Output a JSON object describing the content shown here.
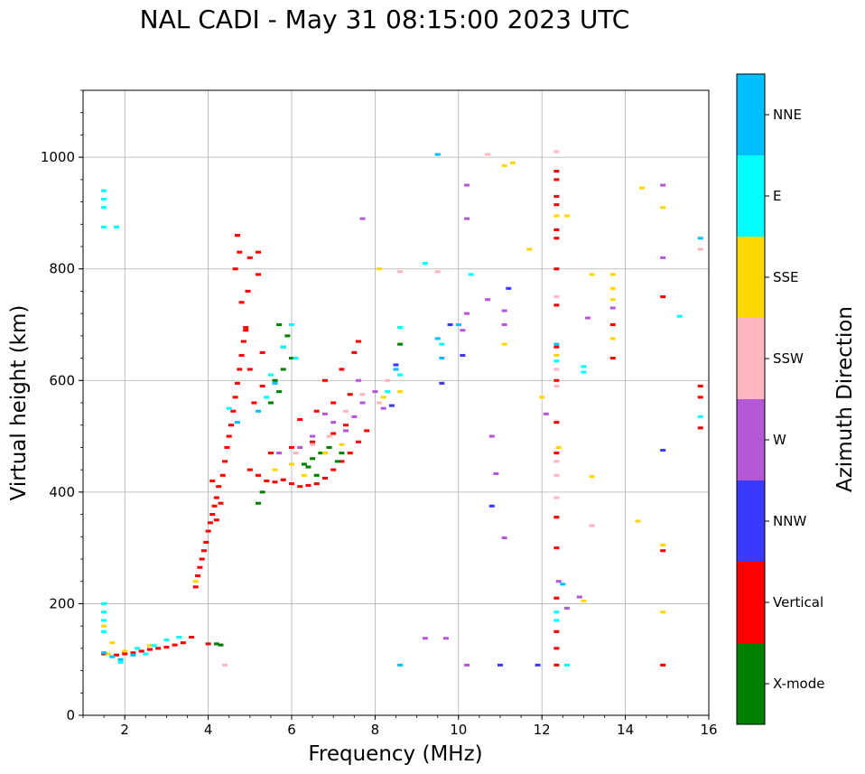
{
  "chart_data": {
    "type": "scatter",
    "title": "NAL CADI - May 31 08:15:00 2023 UTC",
    "xlabel": "Frequency (MHz)",
    "ylabel": "Virtual height (km)",
    "xlim": [
      1,
      16
    ],
    "ylim": [
      0,
      1120
    ],
    "xticks": [
      2,
      4,
      6,
      8,
      10,
      12,
      14,
      16
    ],
    "yticks": [
      0,
      200,
      400,
      600,
      800,
      1000
    ],
    "grid": true,
    "colorbar": {
      "label": "Azimuth Direction",
      "categories": [
        {
          "name": "X-mode",
          "color": "#008000"
        },
        {
          "name": "Vertical",
          "color": "#ff0000"
        },
        {
          "name": "NNW",
          "color": "#3a3aff"
        },
        {
          "name": "W",
          "color": "#b558d8"
        },
        {
          "name": "SSW",
          "color": "#ffb6c1"
        },
        {
          "name": "SSE",
          "color": "#ffd700"
        },
        {
          "name": "E",
          "color": "#00ffff"
        },
        {
          "name": "NNE",
          "color": "#00bfff"
        }
      ]
    },
    "cell_size": {
      "df": 0.13,
      "dh": 5
    },
    "series": [
      {
        "name": "Vertical",
        "points": [
          [
            1.5,
            110
          ],
          [
            1.8,
            108
          ],
          [
            2.0,
            110
          ],
          [
            2.2,
            112
          ],
          [
            2.4,
            115
          ],
          [
            2.6,
            118
          ],
          [
            2.8,
            120
          ],
          [
            3.0,
            122
          ],
          [
            3.2,
            126
          ],
          [
            3.4,
            130
          ],
          [
            3.6,
            140
          ],
          [
            4.0,
            128
          ],
          [
            3.7,
            230
          ],
          [
            3.75,
            250
          ],
          [
            3.8,
            265
          ],
          [
            3.85,
            280
          ],
          [
            3.9,
            295
          ],
          [
            3.95,
            310
          ],
          [
            4.0,
            330
          ],
          [
            4.05,
            345
          ],
          [
            4.1,
            360
          ],
          [
            4.15,
            375
          ],
          [
            4.2,
            390
          ],
          [
            4.25,
            410
          ],
          [
            4.1,
            420
          ],
          [
            4.3,
            380
          ],
          [
            4.2,
            350
          ],
          [
            4.35,
            430
          ],
          [
            4.4,
            455
          ],
          [
            4.45,
            480
          ],
          [
            4.5,
            500
          ],
          [
            4.55,
            520
          ],
          [
            4.6,
            545
          ],
          [
            4.65,
            570
          ],
          [
            4.7,
            595
          ],
          [
            4.75,
            620
          ],
          [
            4.8,
            645
          ],
          [
            4.85,
            670
          ],
          [
            4.9,
            695
          ],
          [
            4.95,
            760
          ],
          [
            4.65,
            800
          ],
          [
            4.8,
            740
          ],
          [
            5.2,
            790
          ],
          [
            4.7,
            860
          ],
          [
            4.75,
            830
          ],
          [
            5.0,
            820
          ],
          [
            5.2,
            830
          ],
          [
            5.0,
            440
          ],
          [
            5.2,
            430
          ],
          [
            5.4,
            420
          ],
          [
            5.6,
            418
          ],
          [
            5.8,
            422
          ],
          [
            6.0,
            415
          ],
          [
            6.2,
            410
          ],
          [
            6.4,
            412
          ],
          [
            6.6,
            415
          ],
          [
            6.8,
            425
          ],
          [
            7.0,
            440
          ],
          [
            7.2,
            455
          ],
          [
            7.4,
            470
          ],
          [
            7.6,
            490
          ],
          [
            7.8,
            510
          ],
          [
            5.5,
            470
          ],
          [
            6.0,
            480
          ],
          [
            6.5,
            490
          ],
          [
            7.0,
            505
          ],
          [
            7.3,
            520
          ],
          [
            6.2,
            530
          ],
          [
            6.6,
            545
          ],
          [
            7.0,
            560
          ],
          [
            7.4,
            575
          ],
          [
            6.8,
            600
          ],
          [
            7.2,
            620
          ],
          [
            7.5,
            650
          ],
          [
            7.6,
            670
          ],
          [
            5.1,
            560
          ],
          [
            5.3,
            590
          ],
          [
            5.0,
            620
          ],
          [
            5.3,
            650
          ],
          [
            4.9,
            690
          ],
          [
            12.35,
            90
          ],
          [
            12.35,
            120
          ],
          [
            12.35,
            150
          ],
          [
            12.35,
            210
          ],
          [
            12.35,
            300
          ],
          [
            12.35,
            355
          ],
          [
            12.35,
            470
          ],
          [
            12.35,
            525
          ],
          [
            12.35,
            600
          ],
          [
            12.35,
            660
          ],
          [
            12.35,
            735
          ],
          [
            12.35,
            800
          ],
          [
            12.35,
            855
          ],
          [
            12.35,
            870
          ],
          [
            12.35,
            915
          ],
          [
            12.35,
            930
          ],
          [
            12.35,
            960
          ],
          [
            12.35,
            975
          ],
          [
            13.7,
            640
          ],
          [
            13.7,
            700
          ],
          [
            14.9,
            90
          ],
          [
            14.9,
            295
          ],
          [
            14.9,
            750
          ],
          [
            15.8,
            515
          ],
          [
            15.8,
            570
          ],
          [
            15.8,
            590
          ]
        ]
      },
      {
        "name": "X-mode",
        "points": [
          [
            4.2,
            128
          ],
          [
            4.3,
            126
          ],
          [
            5.6,
            600
          ],
          [
            5.8,
            620
          ],
          [
            5.8,
            660
          ],
          [
            5.9,
            680
          ],
          [
            5.7,
            700
          ],
          [
            6.0,
            640
          ],
          [
            5.5,
            560
          ],
          [
            5.7,
            580
          ],
          [
            5.2,
            380
          ],
          [
            5.3,
            400
          ],
          [
            6.3,
            450
          ],
          [
            6.5,
            460
          ],
          [
            6.7,
            470
          ],
          [
            6.9,
            480
          ],
          [
            7.1,
            455
          ],
          [
            7.2,
            470
          ],
          [
            6.6,
            430
          ],
          [
            6.4,
            445
          ],
          [
            8.6,
            665
          ]
        ]
      },
      {
        "name": "NNW",
        "points": [
          [
            9.6,
            595
          ],
          [
            9.8,
            700
          ],
          [
            10.1,
            645
          ],
          [
            8.4,
            555
          ],
          [
            10.8,
            375
          ],
          [
            11.0,
            90
          ],
          [
            11.2,
            765
          ],
          [
            11.9,
            90
          ],
          [
            14.9,
            475
          ],
          [
            8.5,
            628
          ]
        ]
      },
      {
        "name": "W",
        "points": [
          [
            6.8,
            540
          ],
          [
            7.0,
            525
          ],
          [
            7.3,
            510
          ],
          [
            7.5,
            535
          ],
          [
            7.7,
            560
          ],
          [
            8.0,
            580
          ],
          [
            8.2,
            550
          ],
          [
            7.6,
            600
          ],
          [
            6.5,
            500
          ],
          [
            6.2,
            480
          ],
          [
            5.7,
            470
          ],
          [
            10.2,
            720
          ],
          [
            10.1,
            690
          ],
          [
            10.2,
            950
          ],
          [
            10.2,
            890
          ],
          [
            10.7,
            745
          ],
          [
            10.8,
            500
          ],
          [
            10.9,
            433
          ],
          [
            11.1,
            318
          ],
          [
            11.1,
            700
          ],
          [
            11.1,
            725
          ],
          [
            12.1,
            540
          ],
          [
            12.4,
            240
          ],
          [
            12.6,
            192
          ],
          [
            12.9,
            212
          ],
          [
            13.1,
            712
          ],
          [
            13.7,
            730
          ],
          [
            14.9,
            820
          ],
          [
            14.9,
            950
          ],
          [
            9.2,
            138
          ],
          [
            9.7,
            138
          ],
          [
            10.2,
            90
          ],
          [
            7.7,
            890
          ]
        ]
      },
      {
        "name": "SSW",
        "points": [
          [
            6.1,
            470
          ],
          [
            6.5,
            485
          ],
          [
            6.9,
            500
          ],
          [
            7.3,
            545
          ],
          [
            7.7,
            575
          ],
          [
            8.1,
            560
          ],
          [
            8.3,
            600
          ],
          [
            8.6,
            795
          ],
          [
            9.5,
            795
          ],
          [
            12.35,
            390
          ],
          [
            12.35,
            430
          ],
          [
            12.35,
            455
          ],
          [
            12.35,
            590
          ],
          [
            12.35,
            620
          ],
          [
            12.35,
            750
          ],
          [
            12.35,
            1010
          ],
          [
            13.2,
            340
          ],
          [
            15.8,
            835
          ],
          [
            10.7,
            1005
          ],
          [
            4.4,
            90
          ]
        ]
      },
      {
        "name": "SSE",
        "points": [
          [
            1.6,
            110
          ],
          [
            1.5,
            160
          ],
          [
            1.7,
            130
          ],
          [
            2.0,
            115
          ],
          [
            2.6,
            125
          ],
          [
            3.7,
            240
          ],
          [
            5.6,
            440
          ],
          [
            6.0,
            450
          ],
          [
            6.3,
            430
          ],
          [
            6.8,
            470
          ],
          [
            7.2,
            485
          ],
          [
            8.1,
            800
          ],
          [
            8.2,
            570
          ],
          [
            8.6,
            580
          ],
          [
            11.1,
            665
          ],
          [
            11.1,
            985
          ],
          [
            11.3,
            990
          ],
          [
            11.7,
            835
          ],
          [
            12.0,
            570
          ],
          [
            12.35,
            645
          ],
          [
            12.35,
            895
          ],
          [
            12.4,
            480
          ],
          [
            12.6,
            895
          ],
          [
            13.0,
            205
          ],
          [
            13.2,
            428
          ],
          [
            13.2,
            790
          ],
          [
            13.7,
            790
          ],
          [
            13.7,
            765
          ],
          [
            13.7,
            745
          ],
          [
            13.7,
            675
          ],
          [
            14.3,
            348
          ],
          [
            14.4,
            945
          ],
          [
            14.9,
            185
          ],
          [
            14.9,
            305
          ],
          [
            14.9,
            910
          ]
        ]
      },
      {
        "name": "E",
        "points": [
          [
            1.5,
            200
          ],
          [
            1.5,
            185
          ],
          [
            1.5,
            170
          ],
          [
            1.5,
            150
          ],
          [
            1.5,
            910
          ],
          [
            1.5,
            925
          ],
          [
            1.5,
            940
          ],
          [
            1.5,
            875
          ],
          [
            1.8,
            875
          ],
          [
            1.9,
            95
          ],
          [
            2.3,
            120
          ],
          [
            2.5,
            110
          ],
          [
            2.7,
            125
          ],
          [
            3.0,
            135
          ],
          [
            3.3,
            140
          ],
          [
            4.5,
            550
          ],
          [
            5.4,
            570
          ],
          [
            5.5,
            610
          ],
          [
            5.8,
            660
          ],
          [
            6.0,
            700
          ],
          [
            6.1,
            640
          ],
          [
            8.3,
            580
          ],
          [
            8.6,
            610
          ],
          [
            8.6,
            695
          ],
          [
            9.2,
            810
          ],
          [
            9.6,
            665
          ],
          [
            10.3,
            790
          ],
          [
            12.35,
            170
          ],
          [
            12.35,
            185
          ],
          [
            12.35,
            635
          ],
          [
            12.6,
            90
          ],
          [
            13.0,
            625
          ],
          [
            13.0,
            615
          ],
          [
            15.3,
            715
          ],
          [
            15.8,
            535
          ]
        ]
      },
      {
        "name": "NNE",
        "points": [
          [
            1.5,
            112
          ],
          [
            1.7,
            105
          ],
          [
            1.9,
            100
          ],
          [
            2.2,
            108
          ],
          [
            4.7,
            525
          ],
          [
            5.2,
            545
          ],
          [
            5.6,
            595
          ],
          [
            8.6,
            90
          ],
          [
            8.5,
            620
          ],
          [
            9.5,
            1005
          ],
          [
            9.5,
            675
          ],
          [
            9.6,
            640
          ],
          [
            10.0,
            700
          ],
          [
            12.35,
            665
          ],
          [
            12.5,
            235
          ],
          [
            15.8,
            855
          ]
        ]
      }
    ]
  }
}
